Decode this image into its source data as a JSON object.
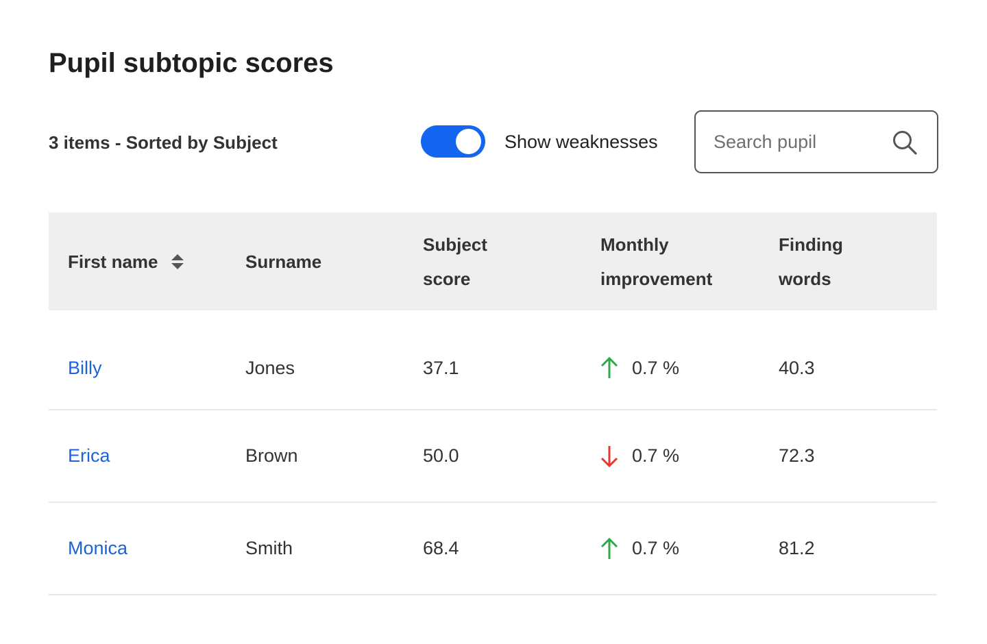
{
  "page": {
    "title": "Pupil subtopic scores"
  },
  "toolbar": {
    "summary": "3 items - Sorted by Subject",
    "toggle_label": "Show weaknesses",
    "toggle_on": true,
    "search_placeholder": "Search pupil",
    "search_value": ""
  },
  "colors": {
    "accent": "#1466f0",
    "link": "#1a63d8",
    "up": "#2eaa4a",
    "down": "#e53935",
    "header_bg": "#efefef"
  },
  "table": {
    "headers": {
      "first_name": "First name",
      "surname": "Surname",
      "subject_score_line1": "Subject",
      "subject_score_line2": "score",
      "monthly_improvement_line1": "Monthly",
      "monthly_improvement_line2": "improvement",
      "finding_words_line1": "Finding",
      "finding_words_line2": "words"
    },
    "rows": [
      {
        "first_name": "Billy",
        "surname": "Jones",
        "subject_score": "37.1",
        "trend": "up",
        "trend_icon": "arrow-up-icon",
        "monthly_improvement": "0.7 %",
        "finding_words": "40.3"
      },
      {
        "first_name": "Erica",
        "surname": "Brown",
        "subject_score": "50.0",
        "trend": "down",
        "trend_icon": "arrow-down-icon",
        "monthly_improvement": "0.7 %",
        "finding_words": "72.3"
      },
      {
        "first_name": "Monica",
        "surname": "Smith",
        "subject_score": "68.4",
        "trend": "up",
        "trend_icon": "arrow-up-icon",
        "monthly_improvement": "0.7 %",
        "finding_words": "81.2"
      }
    ]
  }
}
